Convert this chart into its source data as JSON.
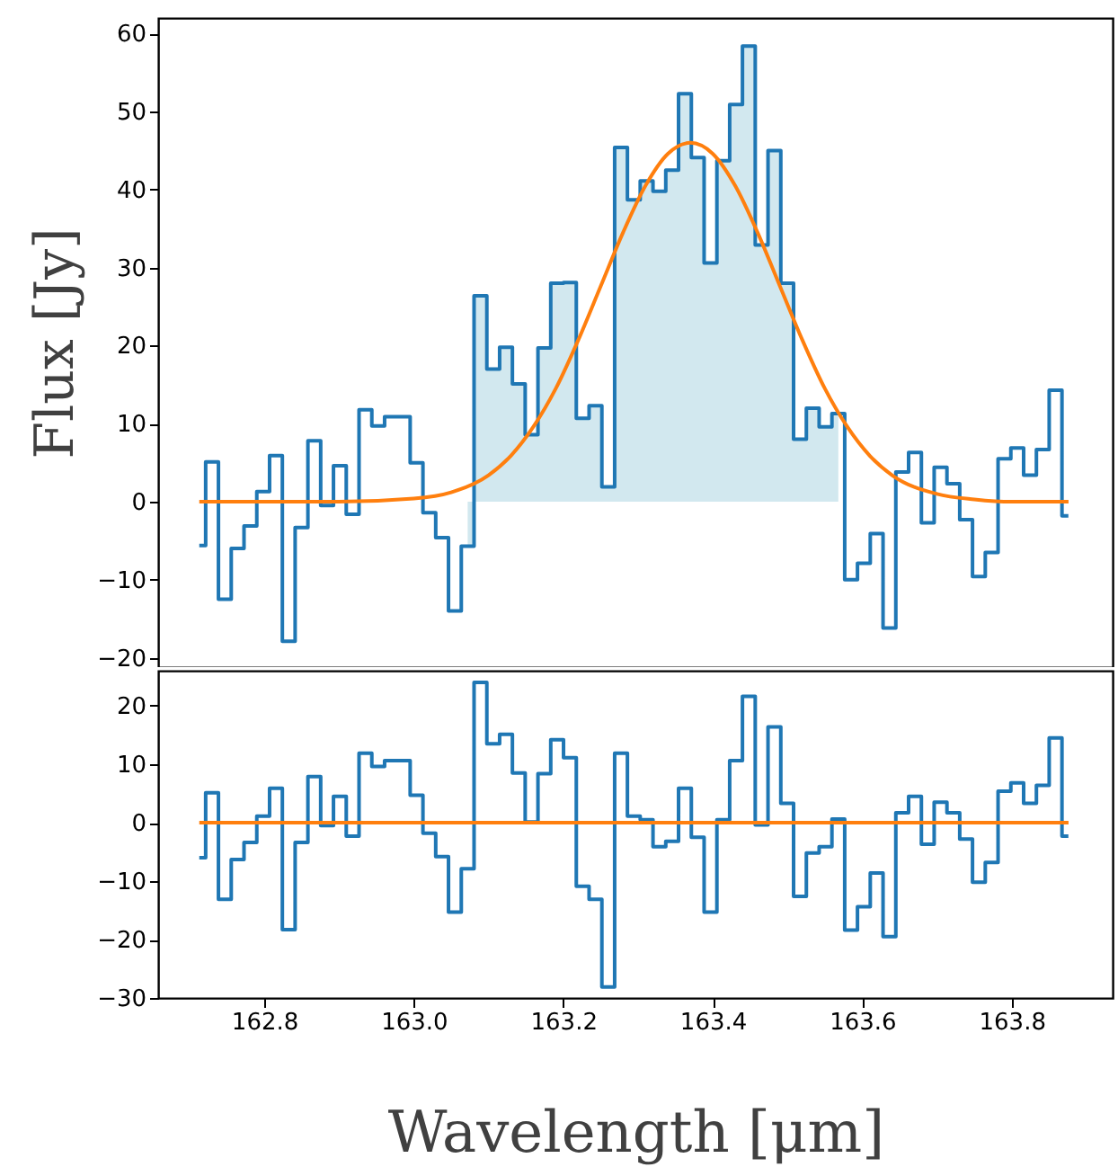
{
  "chart_data": [
    {
      "type": "step",
      "ylabel": "Flux [Jy]",
      "xlim": [
        162.658,
        163.935
      ],
      "ylim": [
        -21.2,
        62
      ],
      "yticks": [
        -20,
        -10,
        0,
        10,
        20,
        30,
        40,
        50,
        60
      ],
      "tick_labels": "y",
      "x": [
        162.713,
        162.7301,
        162.7472,
        162.7643,
        162.7814,
        162.7985,
        162.8156,
        162.8327,
        162.8498,
        162.8669,
        162.884,
        162.9011,
        162.9182,
        162.9353,
        162.9524,
        162.9695,
        162.9866,
        163.0037,
        163.0208,
        163.0379,
        163.055,
        163.0721,
        163.0892,
        163.1063,
        163.1234,
        163.1405,
        163.1576,
        163.1747,
        163.1918,
        163.2089,
        163.226,
        163.2431,
        163.2602,
        163.2773,
        163.2944,
        163.3115,
        163.3286,
        163.3457,
        163.3628,
        163.3799,
        163.397,
        163.4141,
        163.4312,
        163.4483,
        163.4654,
        163.4825,
        163.4996,
        163.5167,
        163.5338,
        163.5509,
        163.568,
        163.5851,
        163.6022,
        163.6193,
        163.6364,
        163.6535,
        163.6706,
        163.6877,
        163.7048,
        163.7219,
        163.739,
        163.7561,
        163.7732,
        163.7903,
        163.8074,
        163.8245,
        163.8416,
        163.8587,
        163.8758
      ],
      "series": [
        {
          "type": "area",
          "color": "#d2e8ef",
          "x": [
            163.0721,
            163.0892,
            163.1063,
            163.1234,
            163.1405,
            163.1576,
            163.1747,
            163.1918,
            163.2089,
            163.226,
            163.2431,
            163.2602,
            163.2773,
            163.2944,
            163.3115,
            163.3286,
            163.3457,
            163.3628,
            163.3799,
            163.397,
            163.4141,
            163.4312,
            163.4483,
            163.4654,
            163.4825,
            163.4996,
            163.5167,
            163.5338,
            163.5509,
            163.568
          ],
          "values": [
            -5.7,
            26.4,
            17.0,
            19.8,
            15.1,
            8.6,
            19.7,
            28.0,
            28.1,
            10.7,
            12.3,
            1.9,
            45.4,
            38.7,
            41.1,
            39.8,
            42.5,
            52.3,
            44.1,
            30.6,
            43.7,
            50.9,
            58.4,
            32.9,
            45.0,
            28.0,
            8.0,
            12.0,
            9.6,
            11.3
          ]
        },
        {
          "color": "#1f77b4",
          "values": [
            -5.6,
            5.1,
            -12.5,
            -6.0,
            -3.1,
            1.3,
            5.9,
            -17.9,
            -3.3,
            7.8,
            -0.5,
            4.6,
            -1.6,
            11.8,
            9.7,
            10.9,
            10.9,
            5.0,
            -1.4,
            -4.6,
            -14.0,
            -5.7,
            26.4,
            17.0,
            19.8,
            15.1,
            8.6,
            19.7,
            28.0,
            28.1,
            10.7,
            12.3,
            1.9,
            45.4,
            38.7,
            41.1,
            39.8,
            42.5,
            52.3,
            44.1,
            30.6,
            43.7,
            50.9,
            58.4,
            32.9,
            45.0,
            28.0,
            8.0,
            12.0,
            9.6,
            11.3,
            -10.0,
            -7.9,
            -4.1,
            -16.2,
            3.8,
            6.3,
            -2.7,
            4.4,
            2.3,
            -2.3,
            -9.6,
            -6.5,
            5.5,
            6.9,
            3.4,
            6.7,
            14.3,
            -1.8
          ]
        },
        {
          "type": "line",
          "color": "#ff7f0e",
          "x": [
            162.713,
            162.9,
            163.0,
            163.05,
            163.1,
            163.13,
            163.16,
            163.19,
            163.22,
            163.25,
            163.28,
            163.31,
            163.34,
            163.37,
            163.4,
            163.43,
            163.46,
            163.49,
            163.52,
            163.55,
            163.58,
            163.61,
            163.64,
            163.7,
            163.75,
            163.8,
            163.876
          ],
          "values": [
            0,
            0,
            0.4,
            1.2,
            3.4,
            5.9,
            9.6,
            14.5,
            20.7,
            27.6,
            34.5,
            40.5,
            44.6,
            46,
            44.6,
            40.5,
            34.5,
            27.6,
            20.7,
            14.5,
            9.6,
            5.9,
            3.4,
            1.0,
            0.3,
            0,
            0
          ]
        }
      ]
    },
    {
      "type": "step",
      "xlabel": "Wavelength [μm]",
      "xlim": [
        162.658,
        163.935
      ],
      "xticks": [
        162.8,
        {
          "value": 163.0,
          "label": "163.0"
        },
        163.2,
        163.4,
        163.6,
        163.8
      ],
      "ylim": [
        -30,
        26
      ],
      "yticks": [
        -30,
        -20,
        -10,
        0,
        10,
        20
      ],
      "x": [
        162.713,
        162.7301,
        162.7472,
        162.7643,
        162.7814,
        162.7985,
        162.8156,
        162.8327,
        162.8498,
        162.8669,
        162.884,
        162.9011,
        162.9182,
        162.9353,
        162.9524,
        162.9695,
        162.9866,
        163.0037,
        163.0208,
        163.0379,
        163.055,
        163.0721,
        163.0892,
        163.1063,
        163.1234,
        163.1405,
        163.1576,
        163.1747,
        163.1918,
        163.2089,
        163.226,
        163.2431,
        163.2602,
        163.2773,
        163.2944,
        163.3115,
        163.3286,
        163.3457,
        163.3628,
        163.3799,
        163.397,
        163.4141,
        163.4312,
        163.4483,
        163.4654,
        163.4825,
        163.4996,
        163.5167,
        163.5338,
        163.5509,
        163.568,
        163.5851,
        163.6022,
        163.6193,
        163.6364,
        163.6535,
        163.6706,
        163.6877,
        163.7048,
        163.7219,
        163.739,
        163.7561,
        163.7732,
        163.7903,
        163.8074,
        163.8245,
        163.8416,
        163.8587,
        163.8758
      ],
      "series": [
        {
          "color": "#1f77b4",
          "values": [
            -6.0,
            5.1,
            -13.1,
            -6.3,
            -3.4,
            1.1,
            5.9,
            -18.3,
            -3.4,
            7.9,
            -0.5,
            4.5,
            -2.3,
            11.9,
            9.6,
            10.6,
            10.6,
            4.7,
            -1.8,
            -5.8,
            -15.3,
            -7.9,
            24.0,
            13.5,
            15.1,
            8.5,
            0.1,
            8.4,
            14.2,
            11.1,
            -10.9,
            -13.1,
            -28.1,
            11.9,
            1.1,
            0.5,
            -4.1,
            -3.2,
            5.9,
            -2.5,
            -15.3,
            0.5,
            10.6,
            21.6,
            -0.4,
            16.4,
            3.3,
            -12.6,
            -5.2,
            -4.1,
            0.6,
            -18.4,
            -14.4,
            -8.6,
            -19.5,
            1.7,
            4.5,
            -3.7,
            3.5,
            1.7,
            -2.8,
            -10.2,
            -6.8,
            5.4,
            6.8,
            3.3,
            6.4,
            14.5,
            -2.3
          ]
        },
        {
          "type": "line",
          "color": "#ff7f0e",
          "x": [
            162.713,
            163.876
          ],
          "values": [
            0,
            0
          ]
        }
      ]
    }
  ]
}
